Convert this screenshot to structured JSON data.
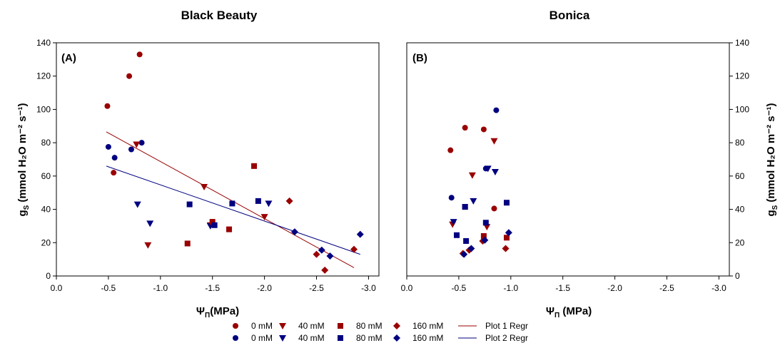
{
  "colors": {
    "red": "#990000",
    "blue": "#000080"
  },
  "chart_data": [
    {
      "type": "scatter",
      "title": "Black Beauty",
      "panel_label": "(A)",
      "xlabel": "Ψ",
      "xlabel_sub": "Π",
      "xlabel_unit": "(MPa)",
      "ylabel": "g",
      "ylabel_sub": "S",
      "ylabel_unit": "(mmol H₂O m⁻² s⁻¹)",
      "xlim": [
        0,
        -3.1
      ],
      "ylim": [
        0,
        140
      ],
      "xticks": [
        "0.0",
        "-0.5",
        "-1.0",
        "-1.5",
        "-2.0",
        "-2.5",
        "-3.0"
      ],
      "yticks": [
        "0",
        "20",
        "40",
        "60",
        "80",
        "100",
        "120",
        "140"
      ],
      "ytick_side": "left",
      "series": [
        {
          "name": "0 mM",
          "marker": "circle",
          "color": "red",
          "points": [
            [
              -0.49,
              102
            ],
            [
              -0.7,
              120
            ],
            [
              -0.8,
              133
            ],
            [
              -0.55,
              62
            ]
          ]
        },
        {
          "name": "0 mM",
          "marker": "circle",
          "color": "blue",
          "points": [
            [
              -0.5,
              77.5
            ],
            [
              -0.56,
              71
            ],
            [
              -0.72,
              76
            ],
            [
              -0.82,
              80
            ]
          ]
        },
        {
          "name": "40 mM",
          "marker": "triangle-down",
          "color": "red",
          "points": [
            [
              -0.77,
              79
            ],
            [
              -1.42,
              53.5
            ],
            [
              -0.88,
              18.5
            ],
            [
              -1.48,
              30.5
            ],
            [
              -2.0,
              35.5
            ]
          ]
        },
        {
          "name": "40 mM",
          "marker": "triangle-down",
          "color": "blue",
          "points": [
            [
              -0.78,
              43
            ],
            [
              -0.9,
              31.5
            ],
            [
              -1.48,
              30
            ],
            [
              -2.04,
              43.5
            ]
          ]
        },
        {
          "name": "80 mM",
          "marker": "square",
          "color": "red",
          "points": [
            [
              -1.9,
              66
            ],
            [
              -1.26,
              19.5
            ],
            [
              -1.5,
              32.5
            ],
            [
              -1.66,
              28
            ]
          ]
        },
        {
          "name": "80 mM",
          "marker": "square",
          "color": "blue",
          "points": [
            [
              -1.28,
              43
            ],
            [
              -1.52,
              30.5
            ],
            [
              -1.69,
              43.5
            ],
            [
              -1.94,
              45
            ]
          ]
        },
        {
          "name": "160 mM",
          "marker": "diamond",
          "color": "red",
          "points": [
            [
              -2.24,
              45
            ],
            [
              -2.5,
              13
            ],
            [
              -2.58,
              3.5
            ],
            [
              -2.86,
              16
            ]
          ]
        },
        {
          "name": "160 mM",
          "marker": "diamond",
          "color": "blue",
          "points": [
            [
              -2.29,
              26.5
            ],
            [
              -2.55,
              15.5
            ],
            [
              -2.63,
              12
            ],
            [
              -2.92,
              25
            ]
          ]
        }
      ],
      "regressions": [
        {
          "name": "Plot 1 Regr",
          "color": "red",
          "x": [
            -0.48,
            -2.86
          ],
          "y": [
            86.5,
            5
          ]
        },
        {
          "name": "Plot 2 Regr",
          "color": "blue",
          "x": [
            -0.48,
            -2.92
          ],
          "y": [
            66,
            13
          ]
        }
      ]
    },
    {
      "type": "scatter",
      "title": "Bonica",
      "panel_label": "(B)",
      "xlabel": "Ψ",
      "xlabel_sub": "Π",
      "xlabel_unit": " (MPa)",
      "ylabel": "g",
      "ylabel_sub": "S",
      "ylabel_unit": "(mmol H₂O m⁻² s⁻¹)",
      "xlim": [
        0,
        -3.1
      ],
      "ylim": [
        0,
        140
      ],
      "xticks": [
        "0.0",
        "-0.5",
        "-1.0",
        "-1.5",
        "-2.0",
        "-2.5",
        "-3.0"
      ],
      "yticks": [
        "0",
        "20",
        "40",
        "60",
        "80",
        "100",
        "120",
        "140"
      ],
      "ytick_side": "right",
      "series": [
        {
          "name": "0 mM",
          "marker": "circle",
          "color": "red",
          "points": [
            [
              -0.42,
              75.5
            ],
            [
              -0.56,
              89
            ],
            [
              -0.74,
              88
            ],
            [
              -0.84,
              40.5
            ]
          ]
        },
        {
          "name": "0 mM",
          "marker": "circle",
          "color": "blue",
          "points": [
            [
              -0.43,
              47
            ],
            [
              -0.86,
              99.5
            ],
            [
              -0.76,
              64.5
            ]
          ]
        },
        {
          "name": "40 mM",
          "marker": "triangle-down",
          "color": "red",
          "points": [
            [
              -0.84,
              81
            ],
            [
              -0.63,
              60.5
            ],
            [
              -0.44,
              31
            ],
            [
              -0.77,
              29.5
            ]
          ]
        },
        {
          "name": "40 mM",
          "marker": "triangle-down",
          "color": "blue",
          "points": [
            [
              -0.85,
              62.5
            ],
            [
              -0.78,
              64.5
            ],
            [
              -0.64,
              45
            ],
            [
              -0.45,
              32.5
            ]
          ]
        },
        {
          "name": "80 mM",
          "marker": "square",
          "color": "red",
          "points": [
            [
              -0.56,
              41.5
            ],
            [
              -0.74,
              24
            ],
            [
              -0.96,
              23
            ]
          ]
        },
        {
          "name": "80 mM",
          "marker": "square",
          "color": "blue",
          "points": [
            [
              -0.56,
              41.5
            ],
            [
              -0.76,
              32
            ],
            [
              -0.96,
              44
            ],
            [
              -0.48,
              24.5
            ],
            [
              -0.57,
              21
            ]
          ]
        },
        {
          "name": "160 mM",
          "marker": "diamond",
          "color": "red",
          "points": [
            [
              -0.54,
              13.5
            ],
            [
              -0.6,
              15.5
            ],
            [
              -0.73,
              21
            ],
            [
              -0.95,
              16.5
            ]
          ]
        },
        {
          "name": "160 mM",
          "marker": "diamond",
          "color": "blue",
          "points": [
            [
              -0.55,
              13
            ],
            [
              -0.62,
              16.5
            ],
            [
              -0.75,
              21.5
            ],
            [
              -0.98,
              26
            ]
          ]
        }
      ]
    }
  ],
  "legend": {
    "items": [
      {
        "label": "0 mM",
        "marker": "circle",
        "color": "red"
      },
      {
        "label": "0 mM",
        "marker": "circle",
        "color": "blue"
      },
      {
        "label": "40 mM",
        "marker": "triangle-down",
        "color": "red"
      },
      {
        "label": "40 mM",
        "marker": "triangle-down",
        "color": "blue"
      },
      {
        "label": "80 mM",
        "marker": "square",
        "color": "red"
      },
      {
        "label": "80 mM",
        "marker": "square",
        "color": "blue"
      },
      {
        "label": "160 mM",
        "marker": "diamond",
        "color": "red"
      },
      {
        "label": "160 mM",
        "marker": "diamond",
        "color": "blue"
      },
      {
        "label": "Plot 1 Regr",
        "marker": "line",
        "color": "red"
      },
      {
        "label": "Plot 2 Regr",
        "marker": "line",
        "color": "blue"
      }
    ]
  }
}
